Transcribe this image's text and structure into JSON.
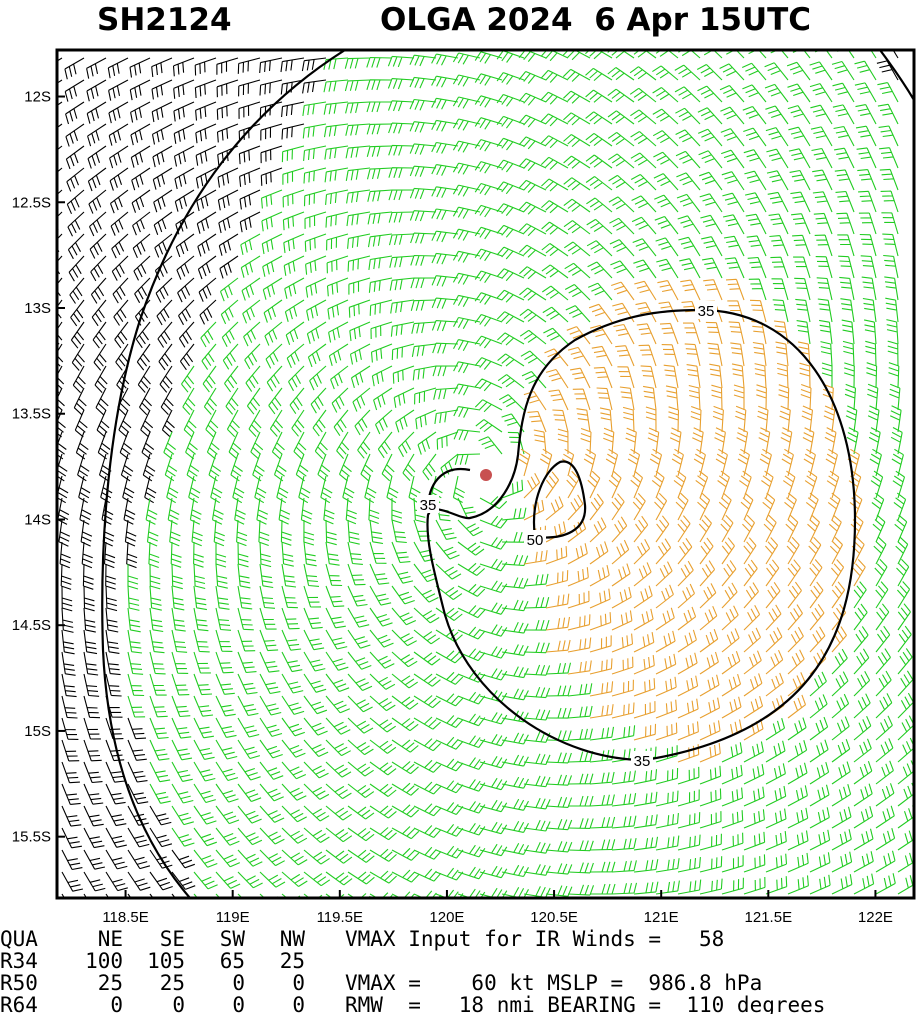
{
  "header": {
    "storm_id": "SH2124",
    "title": "OLGA 2024  6 Apr 15UTC"
  },
  "map": {
    "xlim": [
      118.18,
      122.18
    ],
    "ylim": [
      -15.79,
      -11.78
    ],
    "xticks": [
      {
        "value": 118.5,
        "label": "118.5E"
      },
      {
        "value": 119,
        "label": "119E"
      },
      {
        "value": 119.5,
        "label": "119.5E"
      },
      {
        "value": 120,
        "label": "120E"
      },
      {
        "value": 120.5,
        "label": "120.5E"
      },
      {
        "value": 121,
        "label": "121E"
      },
      {
        "value": 121.5,
        "label": "121.5E"
      },
      {
        "value": 122,
        "label": "122E"
      }
    ],
    "yticks": [
      {
        "value": -12,
        "label": "12S"
      },
      {
        "value": -12.5,
        "label": "12.5S"
      },
      {
        "value": -13,
        "label": "13S"
      },
      {
        "value": -13.5,
        "label": "13.5S"
      },
      {
        "value": -14,
        "label": "14S"
      },
      {
        "value": -14.5,
        "label": "14.5S"
      },
      {
        "value": -15,
        "label": "15S"
      },
      {
        "value": -15.5,
        "label": "15.5S"
      }
    ],
    "contour_labels": [
      35,
      35,
      35,
      50
    ]
  },
  "table": {
    "columns": [
      "QUA",
      "NE",
      "SE",
      "SW",
      "NW"
    ],
    "rows": [
      [
        "R34",
        100,
        105,
        65,
        25
      ],
      [
        "R50",
        25,
        25,
        0,
        0
      ],
      [
        "R64",
        0,
        0,
        0,
        0
      ]
    ]
  },
  "notes": [
    "VMAX Input for IR Winds =   58",
    "VMAX =    60 kt MSLP =  986.8 hPa",
    "RMW  =   18 nmi BEARING =  110 degrees"
  ]
}
